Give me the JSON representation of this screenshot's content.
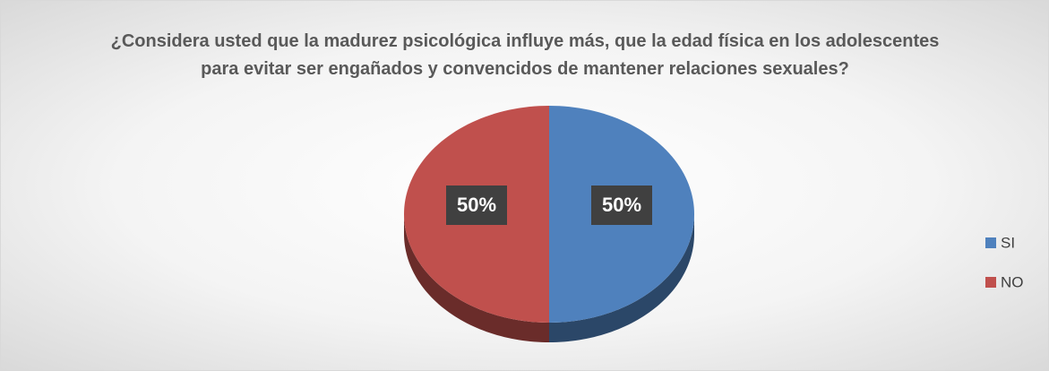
{
  "chart_data": {
    "type": "pie",
    "title": "¿Considera usted que la madurez psicológica influye más, que la edad física en los adolescentes para evitar ser engañados y convencidos de mantener relaciones sexuales?",
    "categories": [
      "SI",
      "NO"
    ],
    "values": [
      50,
      50
    ],
    "value_labels": [
      "50%",
      "50%"
    ],
    "colors": [
      "#4f81bd",
      "#c0504d"
    ],
    "legend": "right"
  }
}
